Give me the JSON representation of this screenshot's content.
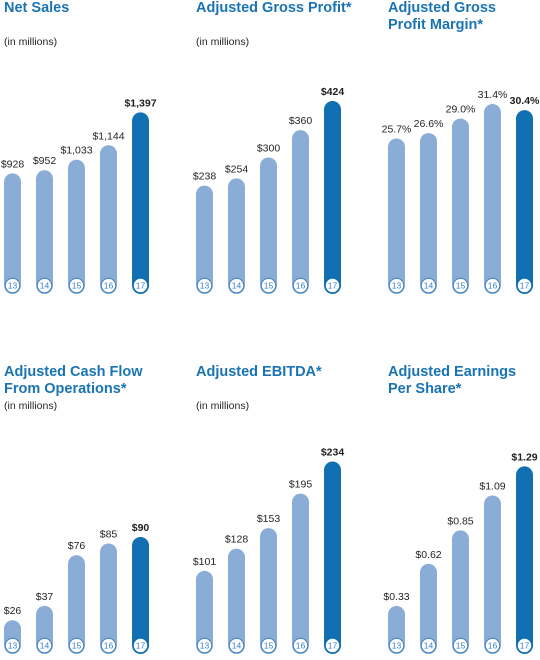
{
  "colors": {
    "title": "#1a74b4",
    "bar": "#8aadd8",
    "bar_highlight": "#1070b1",
    "text": "#231f20",
    "badge_ring": "#3a7fc1"
  },
  "chart_data": [
    {
      "type": "bar",
      "title": "Net Sales",
      "subtitle": "(in millions)",
      "categories": [
        "13",
        "14",
        "15",
        "16",
        "17"
      ],
      "values": [
        928,
        952,
        1033,
        1144,
        1397
      ],
      "labels": [
        "$928",
        "$952",
        "$1,033",
        "$1,144",
        "$1,397"
      ],
      "highlight_index": 4
    },
    {
      "type": "bar",
      "title": "Adjusted Gross Profit*",
      "subtitle": "(in millions)",
      "categories": [
        "13",
        "14",
        "15",
        "16",
        "17"
      ],
      "values": [
        238,
        254,
        300,
        360,
        424
      ],
      "labels": [
        "$238",
        "$254",
        "$300",
        "$360",
        "$424"
      ],
      "highlight_index": 4
    },
    {
      "type": "bar",
      "title": "Adjusted Gross Profit Margin*",
      "subtitle": "",
      "categories": [
        "13",
        "14",
        "15",
        "16",
        "17"
      ],
      "values": [
        25.7,
        26.6,
        29.0,
        31.4,
        30.4
      ],
      "labels": [
        "25.7%",
        "26.6%",
        "29.0%",
        "31.4%",
        "30.4%"
      ],
      "highlight_index": 4
    },
    {
      "type": "bar",
      "title": "Adjusted Cash Flow From Operations*",
      "subtitle": "(in millions)",
      "categories": [
        "13",
        "14",
        "15",
        "16",
        "17"
      ],
      "values": [
        26,
        37,
        76,
        85,
        90
      ],
      "labels": [
        "$26",
        "$37",
        "$76",
        "$85",
        "$90"
      ],
      "highlight_index": 4
    },
    {
      "type": "bar",
      "title": "Adjusted EBITDA*",
      "subtitle": "(in millions)",
      "categories": [
        "13",
        "14",
        "15",
        "16",
        "17"
      ],
      "values": [
        101,
        128,
        153,
        195,
        234
      ],
      "labels": [
        "$101",
        "$128",
        "$153",
        "$195",
        "$234"
      ],
      "highlight_index": 4
    },
    {
      "type": "bar",
      "title": "Adjusted Earnings Per Share*",
      "subtitle": "",
      "categories": [
        "13",
        "14",
        "15",
        "16",
        "17"
      ],
      "values": [
        0.33,
        0.62,
        0.85,
        1.09,
        1.29
      ],
      "labels": [
        "$0.33",
        "$0.62",
        "$0.85",
        "$1.09",
        "$1.29"
      ],
      "highlight_index": 4
    }
  ]
}
